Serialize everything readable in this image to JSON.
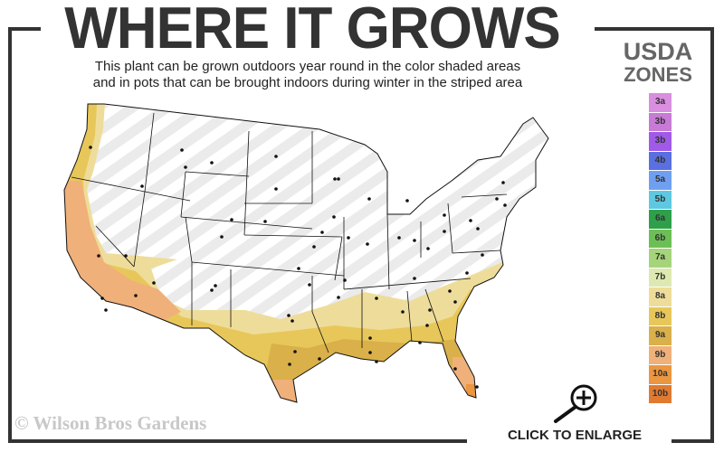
{
  "header": {
    "title": "WHERE IT GROWS",
    "subtitle_line1": "This plant can be grown outdoors year round in the color shaded areas",
    "subtitle_line2": "and in pots that can be brought indoors during winter in the striped area"
  },
  "legend": {
    "title_line1": "USDA",
    "title_line2": "ZONES",
    "zones": [
      {
        "label": "3a",
        "color": "#d98ee0"
      },
      {
        "label": "3b",
        "color": "#c77ad6"
      },
      {
        "label": "3b",
        "color": "#a05ae8"
      },
      {
        "label": "4b",
        "color": "#5a6fe0"
      },
      {
        "label": "5a",
        "color": "#6f9ff0"
      },
      {
        "label": "5b",
        "color": "#5ec8e0"
      },
      {
        "label": "6a",
        "color": "#2fa04a"
      },
      {
        "label": "6b",
        "color": "#6cbf55"
      },
      {
        "label": "7a",
        "color": "#a6d47a"
      },
      {
        "label": "7b",
        "color": "#dde9b0"
      },
      {
        "label": "8a",
        "color": "#eedd9a"
      },
      {
        "label": "8b",
        "color": "#e8c75a"
      },
      {
        "label": "9a",
        "color": "#d9b04a"
      },
      {
        "label": "9b",
        "color": "#f0b07a"
      },
      {
        "label": "10a",
        "color": "#eb9640"
      },
      {
        "label": "10b",
        "color": "#e07a30"
      }
    ]
  },
  "map": {
    "striped_area": "pots indoors during winter",
    "shaded_colors": [
      "#eedd9a",
      "#e8c75a",
      "#d9b04a",
      "#f0b07a",
      "#eb9640"
    ]
  },
  "footer": {
    "watermark": "© Wilson Bros Gardens",
    "enlarge_label": "CLICK TO ENLARGE",
    "enlarge_icon": "zoom-in-magnifier-icon"
  }
}
